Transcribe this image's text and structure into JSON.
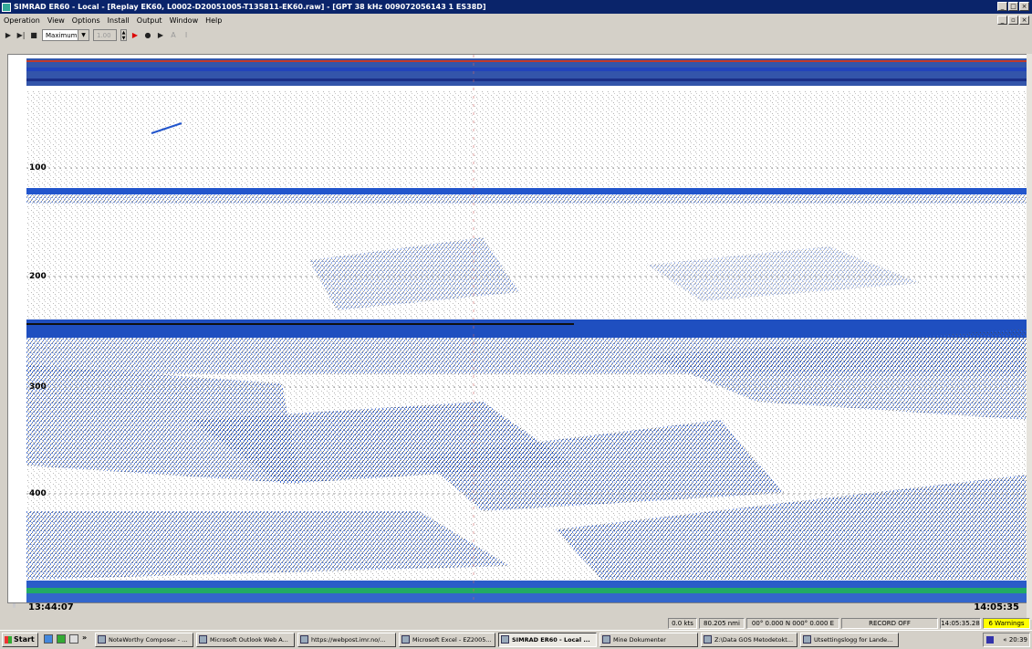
{
  "window": {
    "title": "SIMRAD ER60 - Local - [Replay EK60, L0002-D20051005-T135811-EK60.raw] - [GPT  38 kHz 009072056143 1 ES38D]"
  },
  "menu": [
    "Operation",
    "View",
    "Options",
    "Install",
    "Output",
    "Window",
    "Help"
  ],
  "toolbar": {
    "range_select": "Maximum",
    "value_field": "1.00",
    "disabled_label_a": "A",
    "disabled_label_b": "I"
  },
  "echogram": {
    "depth_labels": [
      "100",
      "200",
      "300",
      "400"
    ],
    "start_time": "13:44:07",
    "end_time": "14:05:35",
    "colors": {
      "background": "#ffffff",
      "echo_blue": "#2255cc",
      "echo_grey": "#666666",
      "bottom_green": "#22aa66"
    }
  },
  "status": {
    "speed": "0.0 kts",
    "distance": "80.205 nmi",
    "position": "00° 0.000 N  000° 0.000 E",
    "record": "RECORD OFF",
    "time": "14:05:35.28",
    "warnings": "6 Warnings"
  },
  "taskbar": {
    "start_label": "Start",
    "overflow": "»",
    "tasks": [
      "NoteWorthy Composer - ...",
      "Microsoft Outlook Web A...",
      "https://webpost.imr.no/...",
      "Microsoft Excel - EZ2005...",
      "SIMRAD ER60 - Local ...",
      "Mine Dokumenter",
      "Z:\\Data GOS Metodetokt...",
      "Utsettingslogg for Lande..."
    ],
    "tray_left": "«",
    "clock": "20:39"
  }
}
